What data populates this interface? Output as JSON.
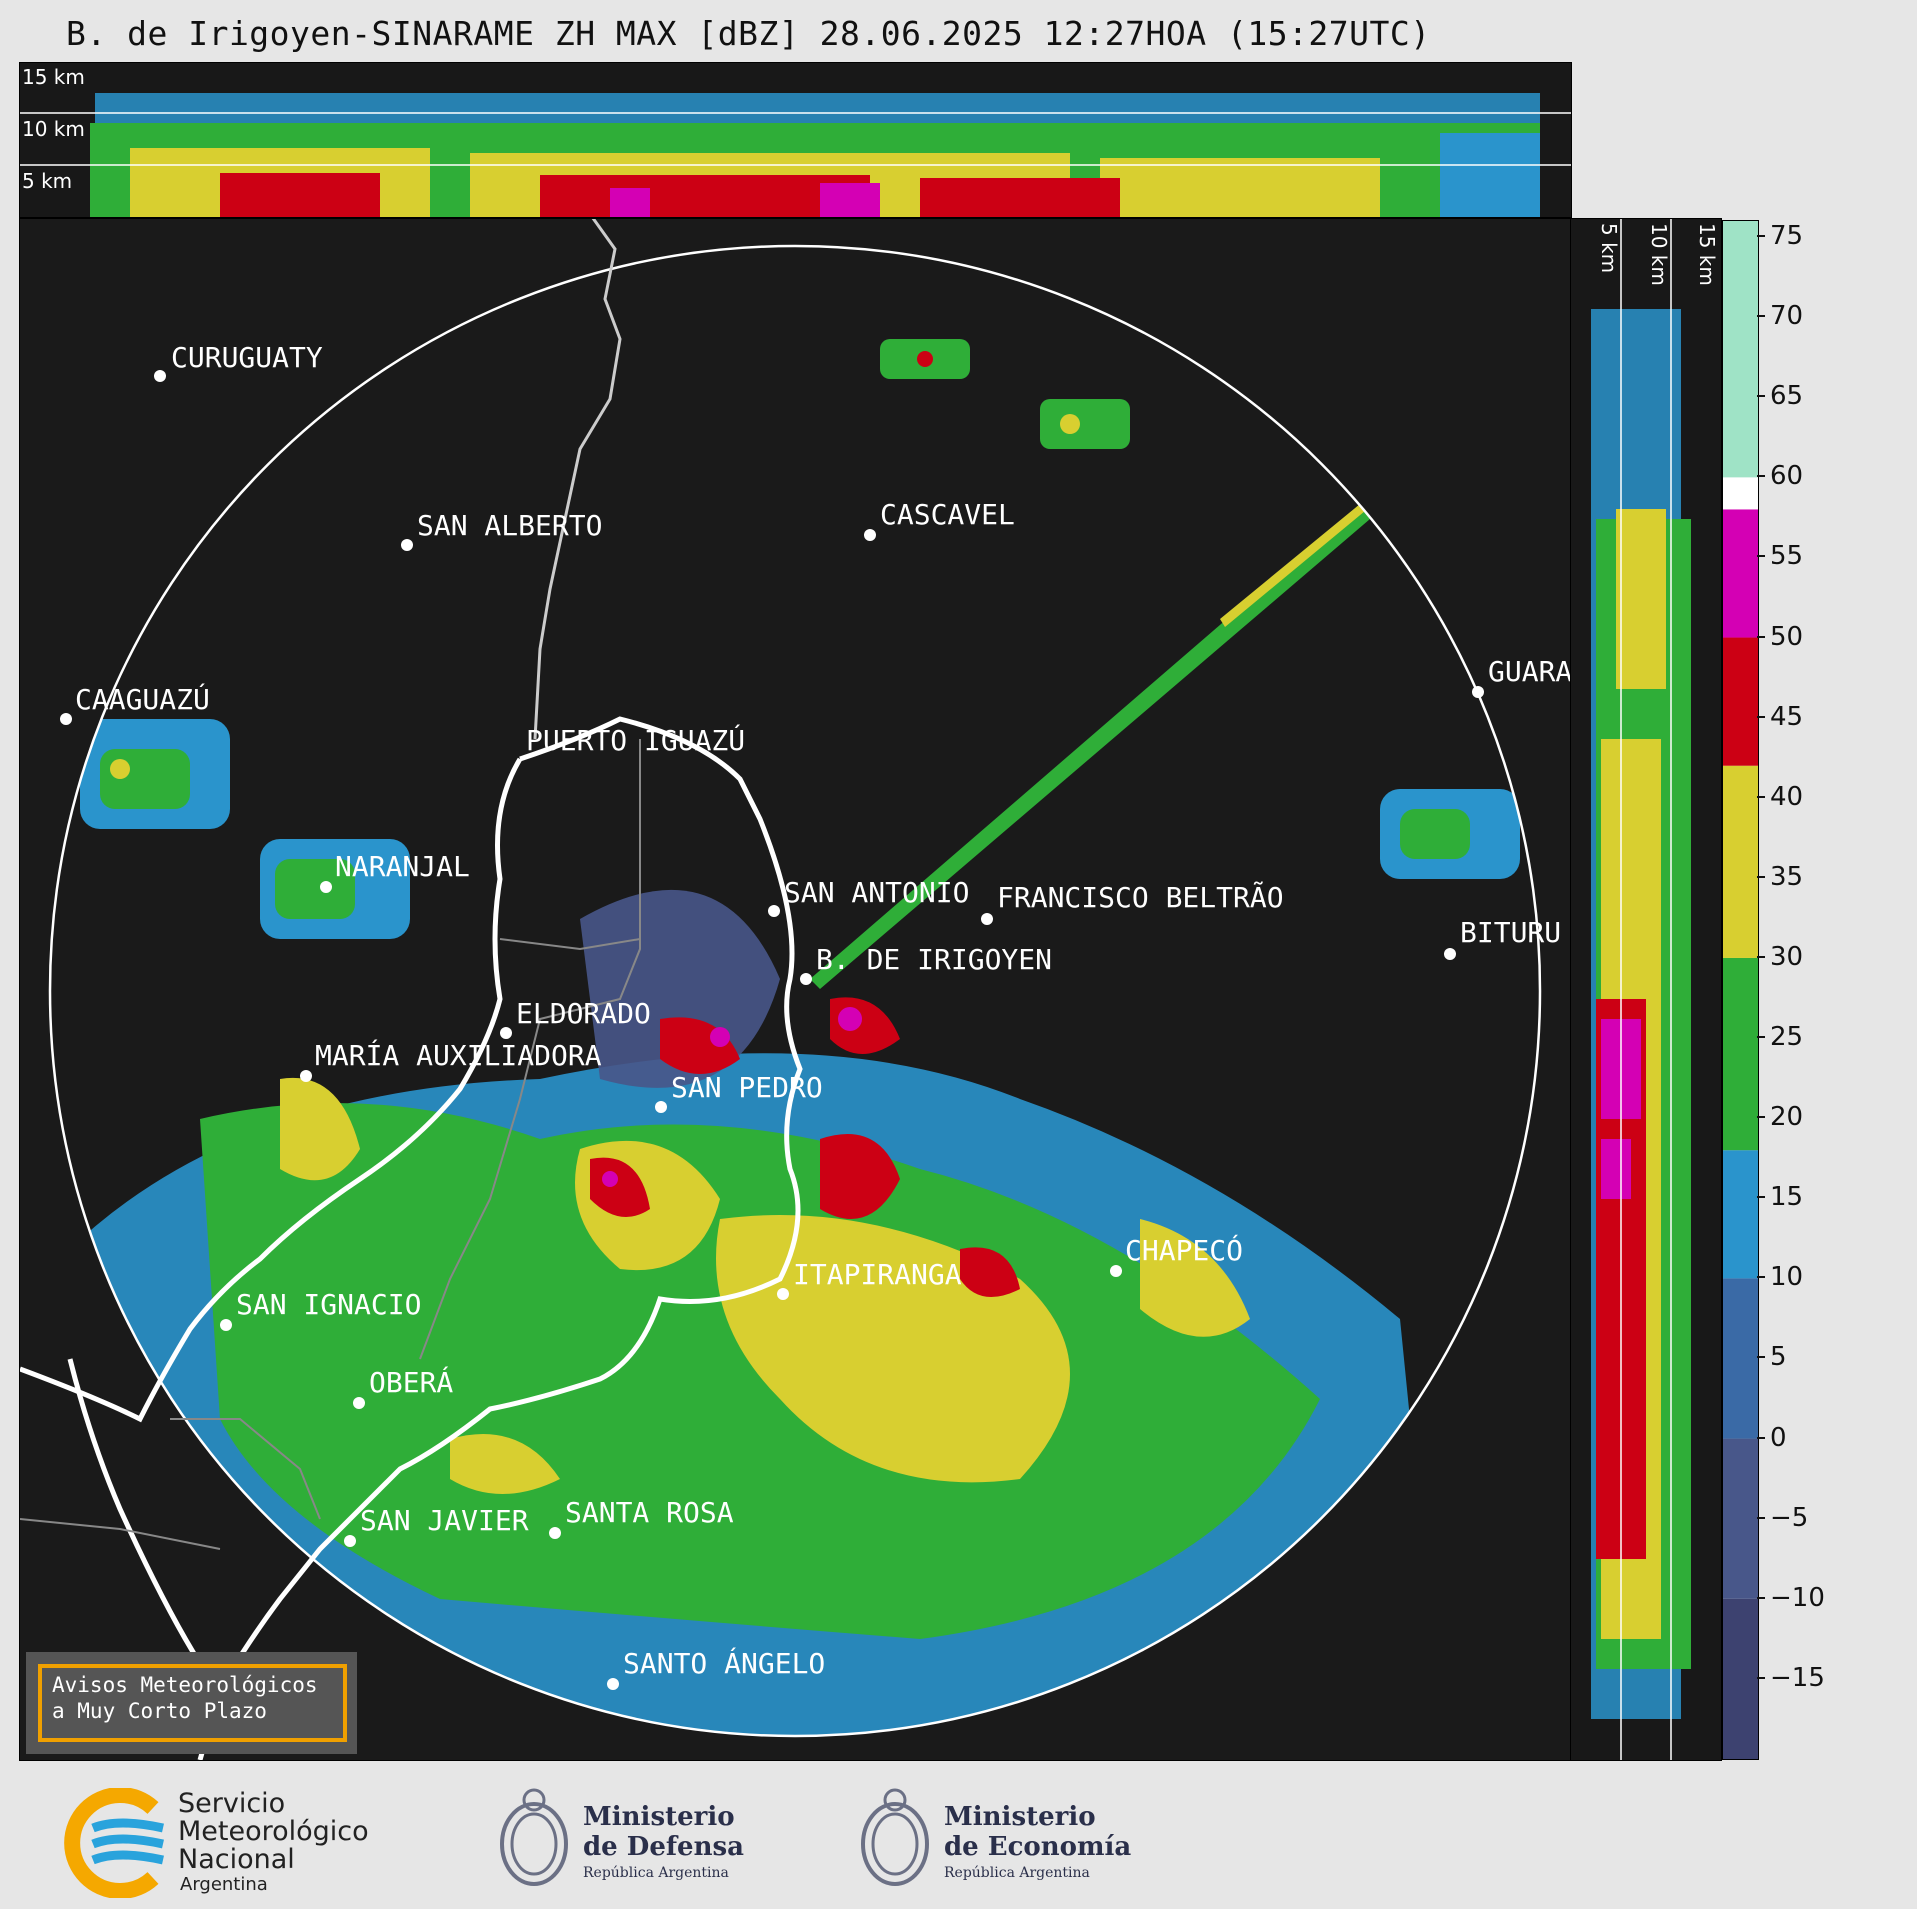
{
  "title": "B. de Irigoyen-SINARAME ZH MAX [dBZ] 28.06.2025 12:27HOA (15:27UTC)",
  "top_panel": {
    "height_labels": [
      "15 km",
      "10 km",
      "5 km"
    ]
  },
  "side_panel": {
    "height_labels": [
      "5 km",
      "10 km",
      "15 km"
    ]
  },
  "colorbar": {
    "ticks": [
      "75",
      "70",
      "65",
      "60",
      "55",
      "50",
      "45",
      "40",
      "35",
      "30",
      "25",
      "20",
      "15",
      "10",
      "5",
      "0",
      "−5",
      "−10",
      "−15"
    ],
    "tick_values": [
      75,
      70,
      65,
      60,
      55,
      50,
      45,
      40,
      35,
      30,
      25,
      20,
      15,
      10,
      5,
      0,
      -5,
      -10,
      -15
    ],
    "range": [
      -20,
      76
    ],
    "stops": [
      {
        "from": -20,
        "to": -10,
        "color": "#3d4270"
      },
      {
        "from": -10,
        "to": 0,
        "color": "#48578a"
      },
      {
        "from": 0,
        "to": 10,
        "color": "#3a6aa6"
      },
      {
        "from": 10,
        "to": 18,
        "color": "#2a94cc"
      },
      {
        "from": 18,
        "to": 30,
        "color": "#2fae38"
      },
      {
        "from": 30,
        "to": 42,
        "color": "#d8cf30"
      },
      {
        "from": 42,
        "to": 50,
        "color": "#cc0014"
      },
      {
        "from": 50,
        "to": 58,
        "color": "#d400b4"
      },
      {
        "from": 58,
        "to": 60,
        "color": "#ffffff"
      },
      {
        "from": 60,
        "to": 76,
        "color": "#9fe3c6"
      }
    ]
  },
  "cities": [
    {
      "name": "CURUGUATY"
    },
    {
      "name": "SAN ALBERTO"
    },
    {
      "name": "CASCAVEL"
    },
    {
      "name": "CAAGUAZÚ"
    },
    {
      "name": "PUERTO IGUAZÚ"
    },
    {
      "name": "GUARA"
    },
    {
      "name": "NARANJAL"
    },
    {
      "name": "SAN ANTONIO"
    },
    {
      "name": "FRANCISCO BELTRÃO"
    },
    {
      "name": "BITURU"
    },
    {
      "name": "B. DE IRIGOYEN"
    },
    {
      "name": "ELDORADO"
    },
    {
      "name": "MARÍA AUXILIADORA"
    },
    {
      "name": "SAN PEDRO"
    },
    {
      "name": "ITAPIRANGA"
    },
    {
      "name": "CHAPECÓ"
    },
    {
      "name": "SAN IGNACIO"
    },
    {
      "name": "OBERÁ"
    },
    {
      "name": "SAN JAVIER"
    },
    {
      "name": "SANTA ROSA"
    },
    {
      "name": "SANTO ÁNGELO"
    }
  ],
  "warning_box": {
    "line1": "Avisos Meteorológicos",
    "line2": "a Muy Corto Plazo"
  },
  "footer": {
    "smn": {
      "line1": "Servicio",
      "line2": "Meteorológico",
      "line3": "Nacional",
      "line4": "Argentina"
    },
    "defensa": {
      "line1": "Ministerio",
      "line2": "de Defensa",
      "line3": "República Argentina"
    },
    "economia": {
      "line1": "Ministerio",
      "line2": "de Economía",
      "line3": "República Argentina"
    }
  },
  "colors": {
    "background": "#1a1a1a",
    "accent_orange": "#f0a000",
    "smn_blue": "#29a3dc",
    "smn_yellow": "#f5a800"
  }
}
